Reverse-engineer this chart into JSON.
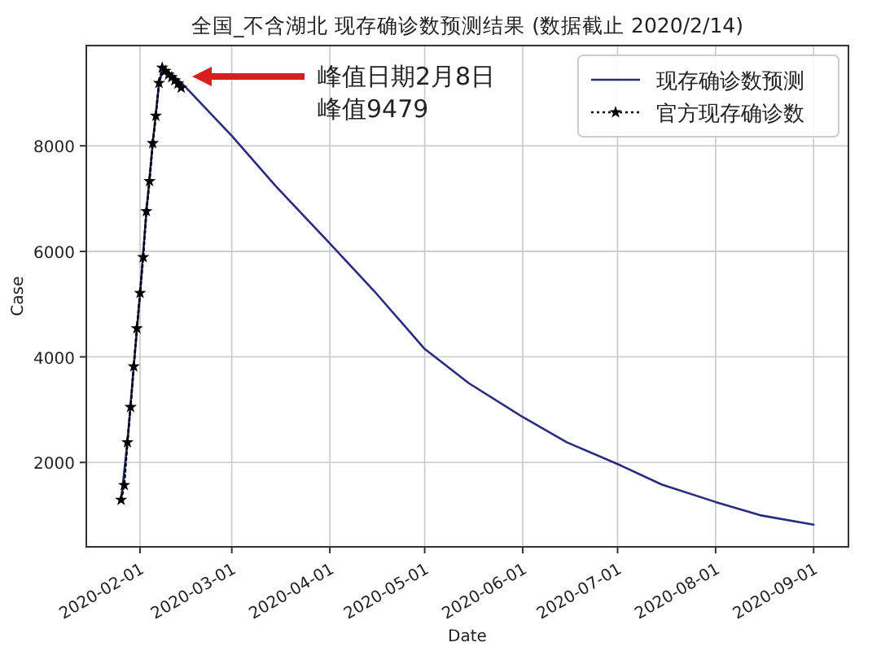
{
  "chart_data": {
    "type": "line",
    "title": "全国_不含湖北  现存确诊数预测结果  (数据截止  2020/2/14)",
    "xlabel": "Date",
    "ylabel": "Case",
    "xlim": [
      "2020-01-15",
      "2020-09-12"
    ],
    "xticks": [
      "2020-02-01",
      "2020-03-01",
      "2020-04-01",
      "2020-05-01",
      "2020-06-01",
      "2020-07-01",
      "2020-08-01",
      "2020-09-01"
    ],
    "ylim": [
      400,
      9900
    ],
    "yticks": [
      2000,
      4000,
      6000,
      8000
    ],
    "grid": true,
    "legend": "top right",
    "annotations": [
      "峰值日期2月8日",
      "峰值9479"
    ],
    "series": [
      {
        "name": "现存确诊数预测",
        "color": "#2a2a7e",
        "marker": "none",
        "line_style": "solid",
        "x": [
          "2020-01-26",
          "2020-01-28",
          "2020-01-30",
          "2020-02-01",
          "2020-02-03",
          "2020-02-05",
          "2020-02-07",
          "2020-02-08",
          "2020-02-10",
          "2020-02-14",
          "2020-03-01",
          "2020-03-15",
          "2020-04-01",
          "2020-04-15",
          "2020-05-01",
          "2020-05-15",
          "2020-06-01",
          "2020-06-15",
          "2020-07-01",
          "2020-07-15",
          "2020-08-01",
          "2020-08-15",
          "2020-09-01"
        ],
        "values": [
          1290,
          2380,
          3820,
          5210,
          6760,
          8050,
          9190,
          9400,
          9400,
          9200,
          8190,
          7230,
          6150,
          5250,
          4150,
          3500,
          2860,
          2380,
          1970,
          1580,
          1250,
          1000,
          820
        ]
      },
      {
        "name": "官方现存确诊数",
        "color": "#000000",
        "marker": "star",
        "line_style": "dotted",
        "x": [
          "2020-01-26",
          "2020-01-27",
          "2020-01-28",
          "2020-01-29",
          "2020-01-30",
          "2020-01-31",
          "2020-02-01",
          "2020-02-02",
          "2020-02-03",
          "2020-02-04",
          "2020-02-05",
          "2020-02-06",
          "2020-02-07",
          "2020-02-08",
          "2020-02-09",
          "2020-02-10",
          "2020-02-11",
          "2020-02-12",
          "2020-02-13",
          "2020-02-14"
        ],
        "values": [
          1290,
          1570,
          2380,
          3050,
          3820,
          4540,
          5210,
          5890,
          6760,
          7330,
          8050,
          8570,
          9190,
          9480,
          9420,
          9350,
          9300,
          9240,
          9180,
          9100
        ]
      }
    ]
  }
}
